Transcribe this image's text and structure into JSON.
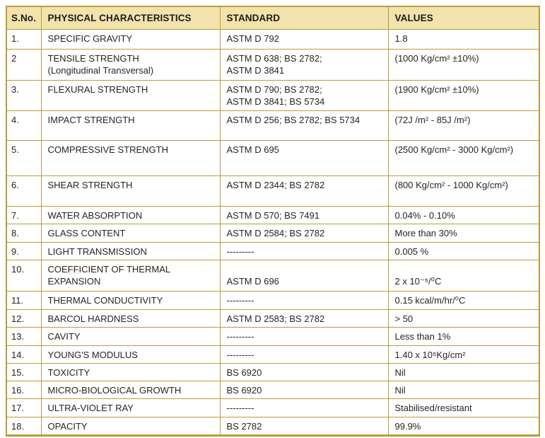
{
  "colors": {
    "border": "#BA9C3E",
    "header_background": "#F2E2AC",
    "text": "#272322",
    "page_background": "#FFFFFF"
  },
  "table": {
    "headers": {
      "sno": "S.No.",
      "characteristic": "PHYSICAL CHARACTERISTICS",
      "standard": "STANDARD",
      "values": "VALUES"
    },
    "rows": [
      {
        "sno": "1.",
        "characteristic": "SPECIFIC GRAVITY",
        "standard": "ASTM D 792",
        "value": "1.8"
      },
      {
        "sno": "2",
        "characteristic": "TENSILE STRENGTH\n(Longitudinal Transversal)",
        "standard": "ASTM D 638; BS 2782;\nASTM D 3841",
        "value": "(1000 Kg/cm² ±10%)"
      },
      {
        "sno": "3.",
        "characteristic": "FLEXURAL STRENGTH",
        "standard": "ASTM D 790; BS 2782;\nASTM D 3841; BS 5734",
        "value": "(1900 Kg/cm² ±10%)"
      },
      {
        "sno": "4.",
        "characteristic": "IMPACT STRENGTH",
        "standard": "ASTM D 256; BS 2782; BS 5734",
        "value": "(72J /m² - 85J /m²)"
      },
      {
        "sno": "5.",
        "characteristic": "COMPRESSIVE STRENGTH",
        "standard": "ASTM D 695",
        "value": "(2500 Kg/cm² - 3000 Kg/cm²)"
      },
      {
        "sno": "6.",
        "characteristic": "SHEAR STRENGTH",
        "standard": "ASTM D 2344; BS 2782",
        "value": "(800 Kg/cm² - 1000 Kg/cm²)"
      },
      {
        "sno": "7.",
        "characteristic": "WATER ABSORPTION",
        "standard": "ASTM D 570; BS 7491",
        "value": "0.04% - 0.10%"
      },
      {
        "sno": "8.",
        "characteristic": "GLASS CONTENT",
        "standard": "ASTM D 2584; BS 2782",
        "value": "More than 30%"
      },
      {
        "sno": "9.",
        "characteristic": "LIGHT TRANSMISSION",
        "standard": "---------",
        "value": "0.005 %"
      },
      {
        "sno": "10.",
        "characteristic": "COEFFICIENT OF THERMAL\nEXPANSION",
        "standard": "ASTM D 696",
        "value": "2 x 10⁻⁵/⁰C"
      },
      {
        "sno": "11.",
        "characteristic": "THERMAL CONDUCTIVITY",
        "standard": "---------",
        "value": "0.15 kcal/m/hr/⁰C"
      },
      {
        "sno": "12.",
        "characteristic": "BARCOL HARDNESS",
        "standard": "ASTM D 2583; BS 2782",
        "value": "> 50"
      },
      {
        "sno": "13.",
        "characteristic": "CAVITY",
        "standard": "---------",
        "value": "Less than 1%"
      },
      {
        "sno": "14.",
        "characteristic": "YOUNG'S MODULUS",
        "standard": "---------",
        "value": "1.40 x 10⁵Kg/cm²"
      },
      {
        "sno": "15.",
        "characteristic": "TOXICITY",
        "standard": "BS 6920",
        "value": "Nil"
      },
      {
        "sno": "16.",
        "characteristic": "MICRO-BIOLOGICAL GROWTH",
        "standard": "BS 6920",
        "value": "Nil"
      },
      {
        "sno": "17.",
        "characteristic": "ULTRA-VIOLET RAY",
        "standard": "---------",
        "value": "Stabilised/resistant"
      },
      {
        "sno": "18.",
        "characteristic": "OPACITY",
        "standard": "BS 2782",
        "value": "99.9%"
      }
    ]
  }
}
